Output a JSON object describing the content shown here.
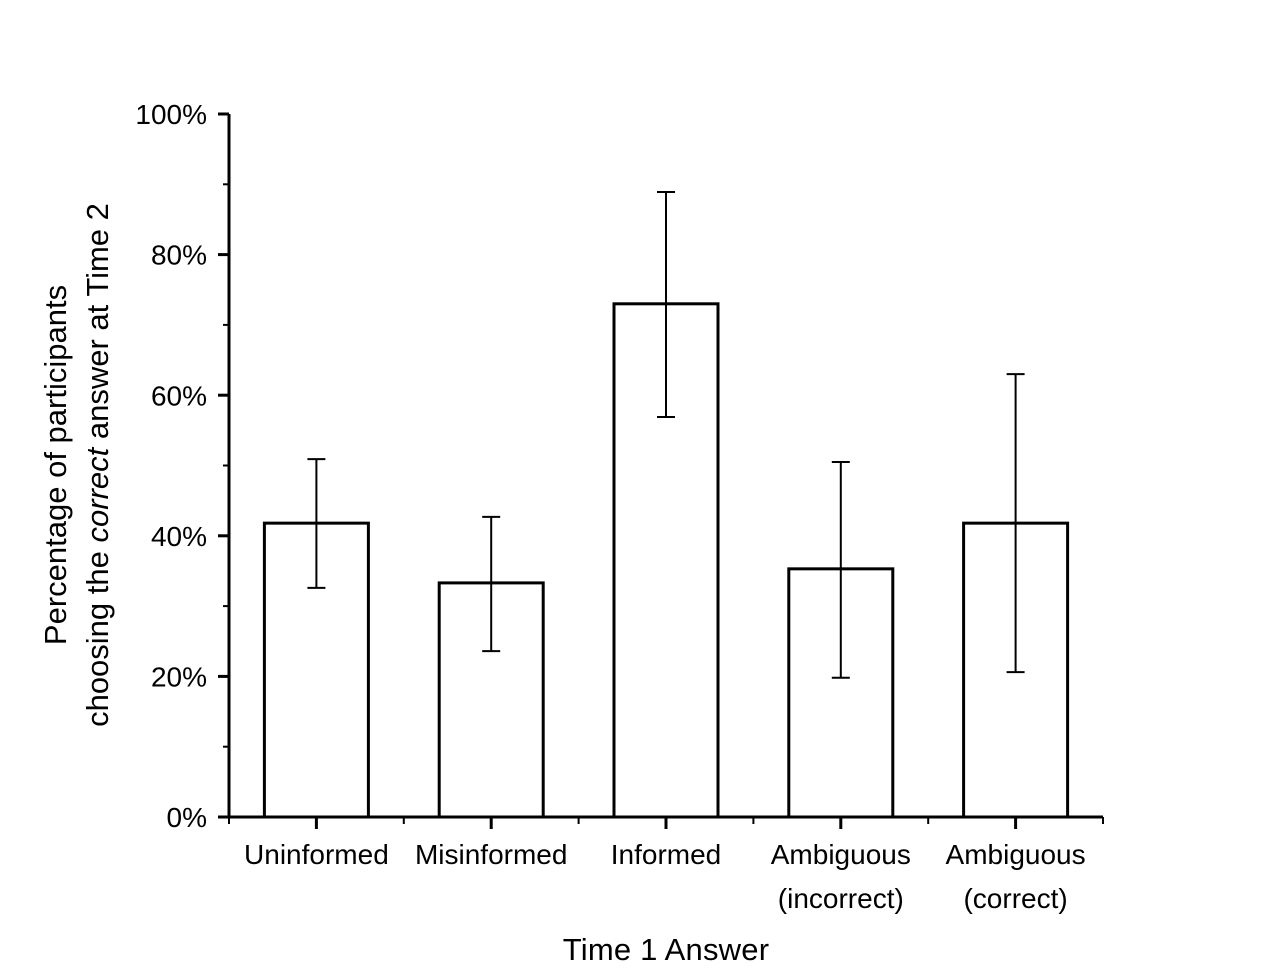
{
  "figure": {
    "background": "#ffffff",
    "ink": "#000000"
  },
  "chart_data": {
    "type": "bar",
    "title": "",
    "xlabel": "Time 1 Answer",
    "ylabel": {
      "line1": "Percentage of participants",
      "line2_prefix": "choosing the ",
      "line2_italic": "correct",
      "line2_suffix": " answer at Time 2"
    },
    "categories": [
      {
        "lines": [
          "Uninformed"
        ]
      },
      {
        "lines": [
          "Misinformed"
        ]
      },
      {
        "lines": [
          "Informed"
        ]
      },
      {
        "lines": [
          "Ambiguous",
          "(incorrect)"
        ]
      },
      {
        "lines": [
          "Ambiguous",
          "(correct)"
        ]
      }
    ],
    "values": [
      41.8,
      33.3,
      73.0,
      35.3,
      41.8
    ],
    "error_low": [
      32.6,
      23.6,
      56.9,
      19.8,
      20.6
    ],
    "error_high": [
      50.9,
      42.7,
      88.9,
      50.5,
      63.0
    ],
    "ylim": [
      0,
      100
    ],
    "y_major_step": 20,
    "y_minor_step": 10,
    "y_tick_labels": [
      "0%",
      "20%",
      "40%",
      "60%",
      "80%",
      "100%"
    ],
    "grid": false,
    "legend": false,
    "bar_fill": "#ffffff",
    "bar_stroke": "#000000",
    "axis_color": "#000000",
    "error_bar_color": "#000000"
  }
}
